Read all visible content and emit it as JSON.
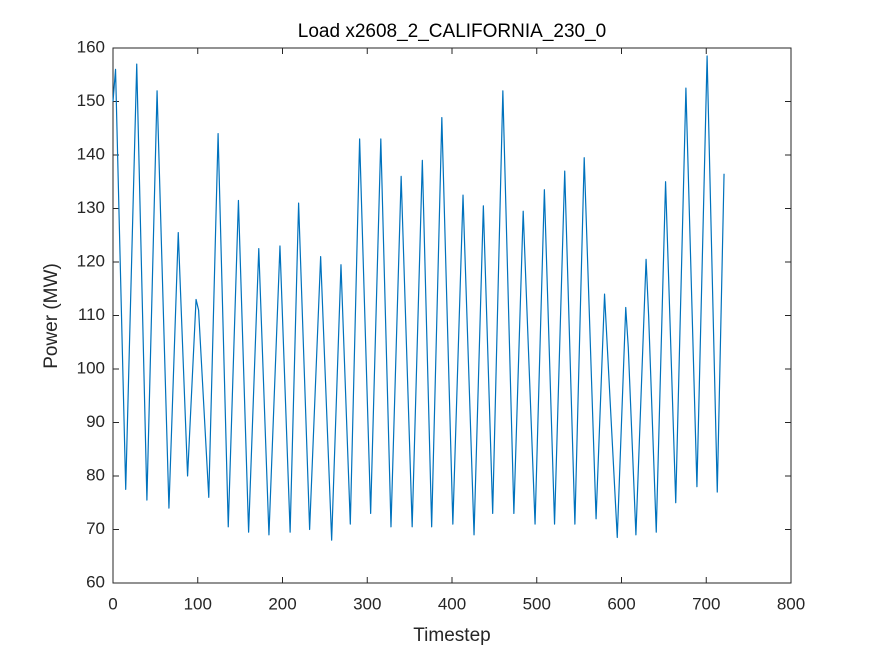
{
  "chart_data": {
    "type": "line",
    "title": "Load x2608_2_CALIFORNIA_230_0",
    "x_label": "Timestep",
    "y_label": "Power (MW)",
    "x": [
      0,
      3,
      15,
      28,
      40,
      52,
      66,
      77,
      88,
      98,
      101,
      113,
      124,
      136,
      148,
      160,
      172,
      184,
      197,
      209,
      219,
      232,
      245,
      258,
      269,
      280,
      291,
      304,
      316,
      328,
      340,
      353,
      365,
      376,
      388,
      401,
      413,
      426,
      437,
      448,
      460,
      473,
      484,
      498,
      509,
      521,
      533,
      545,
      556,
      570,
      580,
      595,
      605,
      608,
      617,
      629,
      632,
      641,
      652,
      664,
      676,
      689,
      701,
      713,
      721
    ],
    "series": [
      {
        "name": "Load",
        "color": "#0072bd",
        "values": [
          150,
          156,
          77.5,
          157,
          75.5,
          152,
          74,
          125.5,
          80,
          113,
          111,
          76,
          144,
          70.5,
          131.5,
          69.5,
          122.5,
          69,
          123,
          69.5,
          131,
          70,
          121,
          68,
          119.5,
          71,
          143,
          73,
          143,
          70.5,
          136,
          70.5,
          139,
          70.5,
          147,
          71,
          132.5,
          69,
          130.5,
          73,
          152,
          73,
          129.5,
          71,
          133.5,
          71,
          137,
          71,
          139.5,
          72,
          114,
          68.5,
          111.5,
          104,
          69,
          120.5,
          110,
          69.5,
          135,
          75,
          152.5,
          78,
          158.5,
          77,
          136.5
        ]
      }
    ],
    "xlim": [
      0,
      800
    ],
    "xticks": [
      0,
      100,
      200,
      300,
      400,
      500,
      600,
      700,
      800
    ],
    "ylim": [
      60,
      160
    ],
    "yticks": [
      60,
      70,
      80,
      90,
      100,
      110,
      120,
      130,
      140,
      150,
      160
    ],
    "grid": false
  }
}
